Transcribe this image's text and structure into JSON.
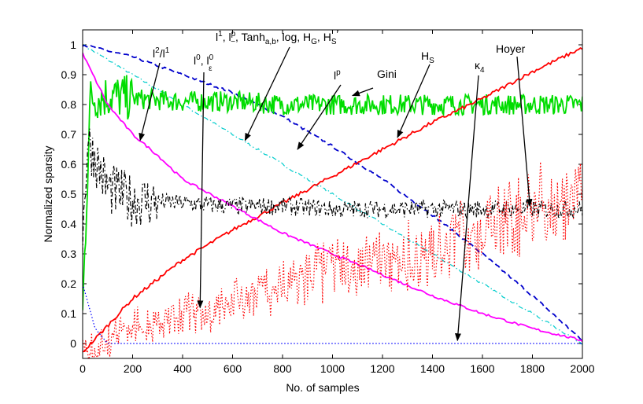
{
  "chart_data": {
    "type": "line",
    "title": "",
    "xlabel": "No. of samples",
    "ylabel": "Normalized sparsity",
    "xlim": [
      0,
      2000
    ],
    "ylim": [
      -0.05,
      1.05
    ],
    "xticks": [
      "0",
      "200",
      "400",
      "600",
      "800",
      "1000",
      "1200",
      "1400",
      "1600",
      "1800",
      "2000"
    ],
    "yticks": [
      "0",
      "0.1",
      "0.2",
      "0.3",
      "0.4",
      "0.5",
      "0.6",
      "0.7",
      "0.8",
      "0.9",
      "1"
    ],
    "series": [
      {
        "name": "l1, lp-, Tanh_a,b, log, HG, HS'",
        "style": "dashdot",
        "color": "#00cccc",
        "x": [
          0,
          200,
          400,
          600,
          800,
          1000,
          1200,
          1400,
          1600,
          1800,
          2000
        ],
        "y": [
          1.0,
          0.9,
          0.8,
          0.7,
          0.6,
          0.5,
          0.4,
          0.3,
          0.2,
          0.1,
          0.0
        ]
      },
      {
        "name": "lp",
        "style": "dashed",
        "color": "#0000cc",
        "x": [
          0,
          200,
          400,
          600,
          800,
          1000,
          1200,
          1400,
          1600,
          1800,
          2000
        ],
        "y": [
          1.0,
          0.96,
          0.9,
          0.84,
          0.76,
          0.66,
          0.55,
          0.43,
          0.3,
          0.16,
          0.01
        ]
      },
      {
        "name": "Gini",
        "style": "solid",
        "color": "#00dd00",
        "x": [
          0,
          30,
          100,
          200,
          400,
          600,
          800,
          1000,
          1200,
          1400,
          1600,
          1800,
          2000
        ],
        "y": [
          0.1,
          0.82,
          0.83,
          0.82,
          0.81,
          0.81,
          0.8,
          0.8,
          0.8,
          0.8,
          0.8,
          0.8,
          0.8
        ]
      },
      {
        "name": "HS",
        "style": "solid",
        "color": "#ff0000",
        "x": [
          0,
          200,
          400,
          600,
          800,
          1000,
          1200,
          1400,
          1600,
          1800,
          2000
        ],
        "y": [
          -0.03,
          0.15,
          0.28,
          0.38,
          0.47,
          0.56,
          0.65,
          0.74,
          0.82,
          0.91,
          0.99
        ]
      },
      {
        "name": "l2/l1",
        "style": "solid",
        "color": "#ff00ff",
        "x": [
          0,
          100,
          200,
          300,
          400,
          600,
          800,
          1000,
          1200,
          1400,
          1600,
          1800,
          2000
        ],
        "y": [
          0.97,
          0.8,
          0.7,
          0.63,
          0.55,
          0.46,
          0.37,
          0.3,
          0.23,
          0.16,
          0.1,
          0.05,
          0.01
        ]
      },
      {
        "name": "Hoyer",
        "style": "dashdot",
        "color": "#000000",
        "x": [
          0,
          20,
          100,
          200,
          400,
          600,
          800,
          1000,
          1200,
          1400,
          1600,
          1800,
          2000
        ],
        "y": [
          0.35,
          0.68,
          0.52,
          0.48,
          0.47,
          0.46,
          0.46,
          0.45,
          0.45,
          0.45,
          0.45,
          0.45,
          0.45
        ]
      },
      {
        "name": "l0, l0_eps",
        "style": "dotted",
        "color": "#ff0000",
        "x": [
          0,
          200,
          400,
          600,
          800,
          1000,
          1200,
          1400,
          1600,
          1800,
          2000
        ],
        "y": [
          0.0,
          0.1,
          0.15,
          0.2,
          0.28,
          0.34,
          0.38,
          0.42,
          0.5,
          0.58,
          0.62
        ]
      },
      {
        "name": "kappa4",
        "style": "dotted",
        "color": "#0000ff",
        "x": [
          0,
          50,
          100,
          2000
        ],
        "y": [
          0.2,
          0.05,
          0.0,
          0.0
        ]
      }
    ],
    "annotations": [
      {
        "text": "l2/l1",
        "target": [
          230,
          0.68
        ]
      },
      {
        "text": "l0, l0_eps",
        "target": [
          470,
          0.12
        ]
      },
      {
        "text": "l1, lp-, Tanh_a,b, log, HG, HS'",
        "target": [
          650,
          0.68
        ]
      },
      {
        "text": "lp",
        "target": [
          860,
          0.65
        ]
      },
      {
        "text": "Gini",
        "target": [
          1080,
          0.83
        ]
      },
      {
        "text": "HS",
        "target": [
          1260,
          0.69
        ]
      },
      {
        "text": "kappa4",
        "target": [
          1500,
          0.01
        ]
      },
      {
        "text": "Hoyer",
        "target": [
          1790,
          0.46
        ]
      }
    ]
  },
  "labels": {
    "l2l1": {
      "base1": "l",
      "sup1": "2",
      "mid": "/l",
      "sup2": "1"
    },
    "l0": {
      "base1": "l",
      "sup1": "0",
      "mid": ", l",
      "sup2": "0",
      "sub2": "ε"
    },
    "l1group": {
      "p1": "l",
      "p1sup": "1",
      "p2": ", l",
      "p2sup": "p",
      "p2sub": "−",
      "p3": ", Tanh",
      "p3sub": "a,b",
      "p4": ", log, H",
      "p4sub": "G",
      "p5": ", H",
      "p5sub": "S",
      "p5tail": "′"
    },
    "lp": {
      "base": "l",
      "sup": "p"
    },
    "gini": "Gini",
    "hs": {
      "base": "H",
      "sub": "S"
    },
    "kappa": {
      "base": "κ",
      "sub": "4"
    },
    "hoyer": "Hoyer"
  }
}
